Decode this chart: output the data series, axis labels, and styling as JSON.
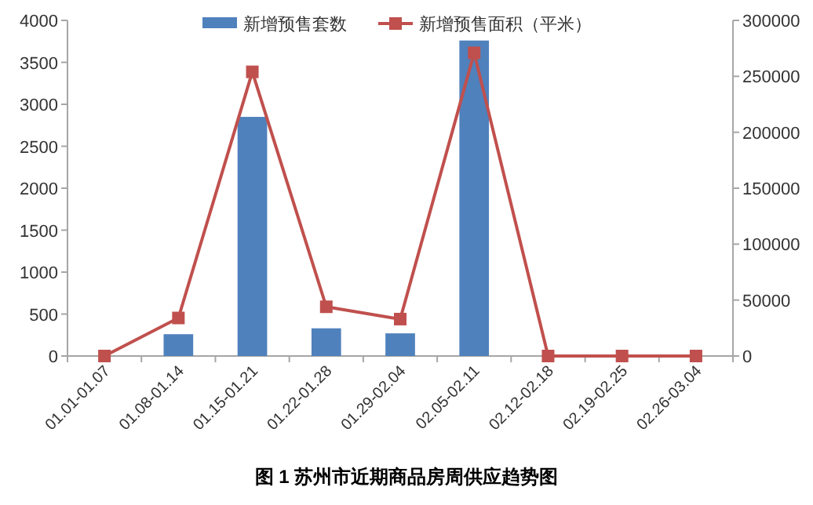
{
  "chart_data": {
    "type": "bar",
    "title": "图 1 苏州市近期商品房周供应趋势图",
    "categories": [
      "01.01-01.07",
      "01.08-01.14",
      "01.15-01.21",
      "01.22-01.28",
      "01.29-02.04",
      "02.05-02.11",
      "02.12-02.18",
      "02.19-02.25",
      "02.26-03.04"
    ],
    "series": [
      {
        "name": "新增预售套数",
        "color": "#4f81bd",
        "values": [
          0,
          260,
          2850,
          330,
          270,
          3760,
          0,
          0,
          0
        ]
      },
      {
        "name": "新增预售面积（平米）",
        "type": "line",
        "axis": "y2",
        "color": "#c0504d",
        "marker": "square",
        "values": [
          0,
          34000,
          254000,
          44000,
          33000,
          271000,
          0,
          0,
          0
        ]
      }
    ],
    "ylim": [
      0,
      4000
    ],
    "yticks": [
      0,
      500,
      1000,
      1500,
      2000,
      2500,
      3000,
      3500,
      4000
    ],
    "y2lim": [
      0,
      300000
    ],
    "y2ticks": [
      0,
      50000,
      100000,
      150000,
      200000,
      250000,
      300000
    ],
    "legend": "top",
    "grid": false
  }
}
